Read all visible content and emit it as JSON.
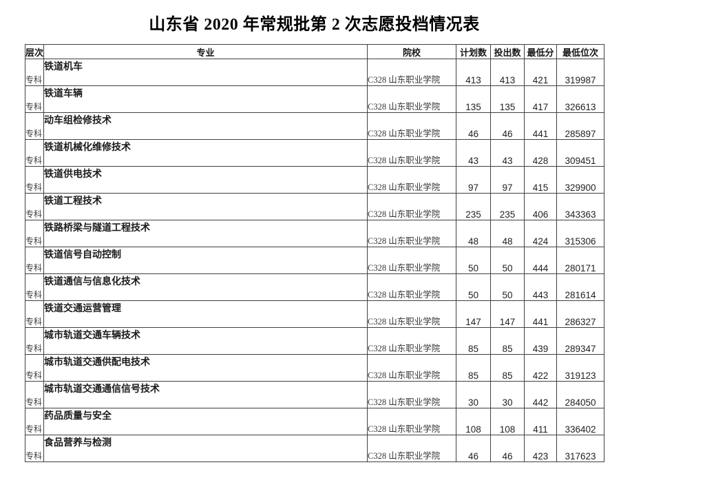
{
  "page": {
    "title": "山东省 2020 年常规批第 2 次志愿投档情况表"
  },
  "colors": {
    "background": "#ffffff",
    "border": "#3f3f3f",
    "text_primary": "#1c1c1c",
    "text_secondary": "#3c3c3c"
  },
  "table": {
    "headers": {
      "level": "层次",
      "major": "专业",
      "college": "院校",
      "plan": "计划数",
      "cast": "投出数",
      "min_score": "最低分",
      "min_rank": "最低位次"
    },
    "rows": [
      {
        "level": "专科",
        "major": "铁道机车",
        "college": "C328 山东职业学院",
        "plan": "413",
        "cast": "413",
        "min_score": "421",
        "min_rank": "319987"
      },
      {
        "level": "专科",
        "major": "铁道车辆",
        "college": "C328 山东职业学院",
        "plan": "135",
        "cast": "135",
        "min_score": "417",
        "min_rank": "326613"
      },
      {
        "level": "专科",
        "major": "动车组检修技术",
        "college": "C328 山东职业学院",
        "plan": "46",
        "cast": "46",
        "min_score": "441",
        "min_rank": "285897"
      },
      {
        "level": "专科",
        "major": "铁道机械化维修技术",
        "college": "C328 山东职业学院",
        "plan": "43",
        "cast": "43",
        "min_score": "428",
        "min_rank": "309451"
      },
      {
        "level": "专科",
        "major": "铁道供电技术",
        "college": "C328 山东职业学院",
        "plan": "97",
        "cast": "97",
        "min_score": "415",
        "min_rank": "329900"
      },
      {
        "level": "专科",
        "major": "铁道工程技术",
        "college": "C328 山东职业学院",
        "plan": "235",
        "cast": "235",
        "min_score": "406",
        "min_rank": "343363"
      },
      {
        "level": "专科",
        "major": "铁路桥梁与隧道工程技术",
        "college": "C328 山东职业学院",
        "plan": "48",
        "cast": "48",
        "min_score": "424",
        "min_rank": "315306"
      },
      {
        "level": "专科",
        "major": "铁道信号自动控制",
        "college": "C328 山东职业学院",
        "plan": "50",
        "cast": "50",
        "min_score": "444",
        "min_rank": "280171"
      },
      {
        "level": "专科",
        "major": "铁道通信与信息化技术",
        "college": "C328 山东职业学院",
        "plan": "50",
        "cast": "50",
        "min_score": "443",
        "min_rank": "281614"
      },
      {
        "level": "专科",
        "major": "铁道交通运营管理",
        "college": "C328 山东职业学院",
        "plan": "147",
        "cast": "147",
        "min_score": "441",
        "min_rank": "286327"
      },
      {
        "level": "专科",
        "major": "城市轨道交通车辆技术",
        "college": "C328 山东职业学院",
        "plan": "85",
        "cast": "85",
        "min_score": "439",
        "min_rank": "289347"
      },
      {
        "level": "专科",
        "major": "城市轨道交通供配电技术",
        "college": "C328 山东职业学院",
        "plan": "85",
        "cast": "85",
        "min_score": "422",
        "min_rank": "319123"
      },
      {
        "level": "专科",
        "major": "城市轨道交通通信信号技术",
        "college": "C328 山东职业学院",
        "plan": "30",
        "cast": "30",
        "min_score": "442",
        "min_rank": "284050"
      },
      {
        "level": "专科",
        "major": "药品质量与安全",
        "college": "C328 山东职业学院",
        "plan": "108",
        "cast": "108",
        "min_score": "411",
        "min_rank": "336402"
      },
      {
        "level": "专科",
        "major": "食品营养与检测",
        "college": "C328 山东职业学院",
        "plan": "46",
        "cast": "46",
        "min_score": "423",
        "min_rank": "317623"
      }
    ]
  }
}
